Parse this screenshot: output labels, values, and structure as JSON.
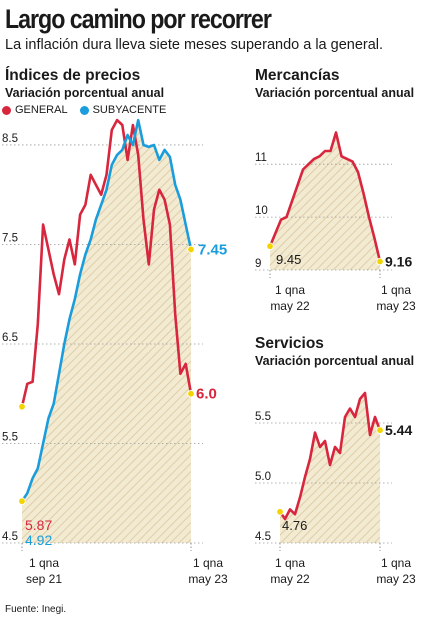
{
  "header": {
    "title": "Largo camino por recorrer",
    "subtitle": "La inflación dura lleva siete meses superando a la general."
  },
  "colors": {
    "general": "#d7263d",
    "subyacente": "#1a9ddc",
    "marker": "#f4d400",
    "fill": "#f3ead2",
    "hatch": "#d8c79e"
  },
  "footer": {
    "source": "Fuente: Inegi."
  },
  "chart_data": [
    {
      "type": "line",
      "title": "Índices de precios",
      "subtitle": "Variación porcentual anual",
      "legend": {
        "placement": "top-left"
      },
      "ylim": [
        4.5,
        8.6
      ],
      "y_ticks": [
        "4.5",
        "5.5",
        "6.5",
        "7.5",
        "8.5"
      ],
      "y_tick_values": [
        4.5,
        5.5,
        6.5,
        7.5,
        8.5
      ],
      "x_tick_labels": [
        [
          "1 qna",
          "sep 21"
        ],
        [
          "1 qna",
          "may 23"
        ]
      ],
      "series": [
        {
          "name": "GENERAL",
          "color": "#d7263d",
          "start_label": "5.87",
          "end_label": "6.0",
          "values": [
            5.87,
            6.1,
            6.12,
            6.7,
            7.7,
            7.45,
            7.2,
            7.0,
            7.35,
            7.55,
            7.3,
            7.8,
            7.9,
            8.2,
            8.1,
            8.0,
            8.2,
            8.65,
            8.75,
            8.7,
            8.35,
            8.7,
            8.4,
            7.75,
            7.3,
            7.85,
            8.05,
            7.95,
            7.7,
            6.8,
            6.2,
            6.3,
            6.0
          ]
        },
        {
          "name": "SUBYACENTE",
          "color": "#1a9ddc",
          "start_label": "4.92",
          "end_label": "7.45",
          "values": [
            4.92,
            5.0,
            5.15,
            5.25,
            5.5,
            5.75,
            5.9,
            6.2,
            6.5,
            6.75,
            6.95,
            7.2,
            7.4,
            7.55,
            7.75,
            7.9,
            8.05,
            8.3,
            8.4,
            8.45,
            8.6,
            8.5,
            8.75,
            8.5,
            8.48,
            8.5,
            8.35,
            8.45,
            8.38,
            8.1,
            7.95,
            7.7,
            7.45
          ]
        }
      ]
    },
    {
      "type": "area",
      "title": "Mercancías",
      "subtitle": "Variación porcentual anual",
      "ylim": [
        9,
        12.1
      ],
      "y_ticks": [
        "9",
        "10",
        "11"
      ],
      "y_tick_values": [
        9,
        10,
        11
      ],
      "x_tick_labels": [
        [
          "1 qna",
          "may 22"
        ],
        [
          "1 qna",
          "may 23"
        ]
      ],
      "series": [
        {
          "name": "",
          "color": "#d7263d",
          "start_label": "9.45",
          "end_label": "9.16",
          "values": [
            9.45,
            9.7,
            9.95,
            10.0,
            10.3,
            10.6,
            10.9,
            11.0,
            11.1,
            11.15,
            11.25,
            11.25,
            11.6,
            11.15,
            11.1,
            11.05,
            10.85,
            10.45,
            10.0,
            9.6,
            9.16
          ]
        }
      ]
    },
    {
      "type": "area",
      "title": "Servicios",
      "subtitle": "Variación porcentual anual",
      "ylim": [
        4.5,
        5.9
      ],
      "y_ticks": [
        "4.5",
        "5.0",
        "5.5"
      ],
      "y_tick_values": [
        4.5,
        5.0,
        5.5
      ],
      "x_tick_labels": [
        [
          "1 qna",
          "may 22"
        ],
        [
          "1 qna",
          "may 23"
        ]
      ],
      "series": [
        {
          "name": "",
          "color": "#d7263d",
          "start_label": "4.76",
          "end_label": "5.44",
          "values": [
            4.76,
            4.7,
            4.78,
            4.74,
            4.88,
            5.05,
            5.2,
            5.42,
            5.3,
            5.35,
            5.15,
            5.3,
            5.25,
            5.55,
            5.62,
            5.55,
            5.7,
            5.75,
            5.4,
            5.55,
            5.44
          ]
        }
      ]
    }
  ]
}
